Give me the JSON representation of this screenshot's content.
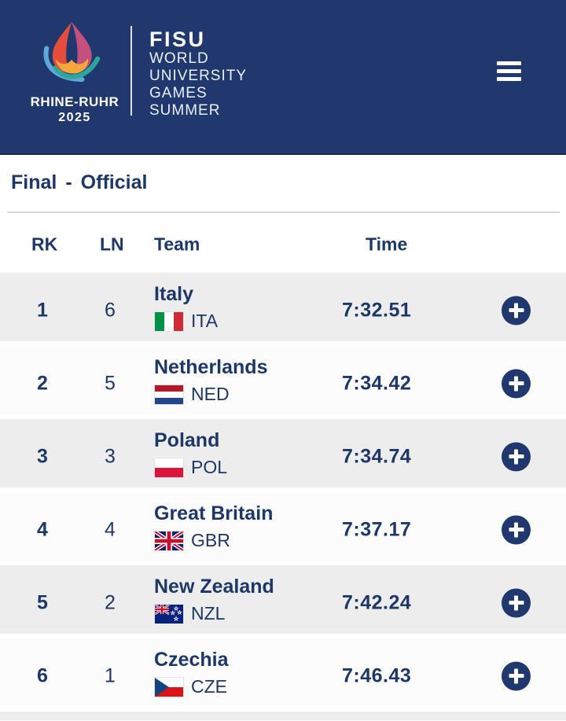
{
  "header": {
    "logo": {
      "event_name": "RHINE-RUHR",
      "event_year": "2025",
      "icon": "flame-logo-icon"
    },
    "brand": {
      "fisu": "FISU",
      "lines": [
        "WORLD",
        "UNIVERSITY",
        "GAMES",
        "SUMMER"
      ]
    },
    "menu_icon": "hamburger-icon"
  },
  "section": {
    "phase": "Final",
    "separator": "-",
    "status": "Official"
  },
  "table": {
    "columns": [
      "RK",
      "LN",
      "Team",
      "Time"
    ],
    "rows": [
      {
        "rk": "1",
        "ln": "6",
        "team": "Italy",
        "code": "ITA",
        "time": "7:32.51"
      },
      {
        "rk": "2",
        "ln": "5",
        "team": "Netherlands",
        "code": "NED",
        "time": "7:34.42"
      },
      {
        "rk": "3",
        "ln": "3",
        "team": "Poland",
        "code": "POL",
        "time": "7:34.74"
      },
      {
        "rk": "4",
        "ln": "4",
        "team": "Great Britain",
        "code": "GBR",
        "time": "7:37.17"
      },
      {
        "rk": "5",
        "ln": "2",
        "team": "New Zealand",
        "code": "NZL",
        "time": "7:42.24"
      },
      {
        "rk": "6",
        "ln": "1",
        "team": "Czechia",
        "code": "CZE",
        "time": "7:46.43"
      }
    ],
    "expand_icon": "plus-icon"
  },
  "colors": {
    "header_navy": "#21386E",
    "text_navy": "#1D3768",
    "row_gray": "#EDEDED",
    "row_white": "#FCFCFC",
    "divider": "#D8D8D8",
    "flame_red": "#E44D3C",
    "flame_pink": "#C4517D",
    "flame_yellow": "#F5A73B",
    "arc_blue": "#5FA8DA",
    "arc_teal": "#2BA89B"
  }
}
